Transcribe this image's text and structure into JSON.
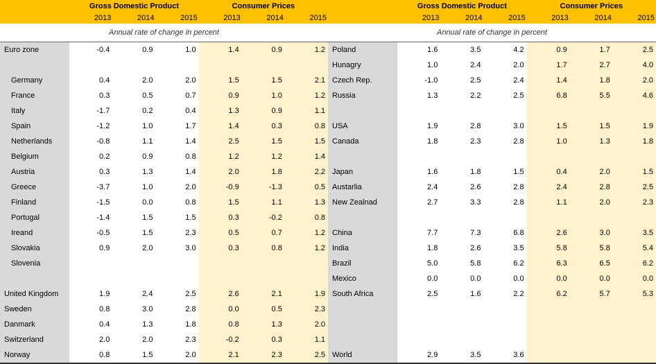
{
  "headers": {
    "gdp": "Gross Domestic Product",
    "cpi": "Consumer Prices",
    "years": [
      "2013",
      "2014",
      "2015"
    ],
    "sub": "Annual rate of change in percent"
  },
  "colors": {
    "header_bg": "#ffc000",
    "country_bg": "#d9d9d9",
    "cpi_bg": "#fff2cc",
    "gdp_bg": "#ffffff",
    "text": "#000000"
  },
  "left": [
    {
      "name": "Euro zone",
      "indent": false,
      "gdp": [
        "-0.4",
        "0.9",
        "1.0"
      ],
      "cpi": [
        "1.4",
        "0.9",
        "1.2"
      ]
    },
    {
      "spacer": true
    },
    {
      "name": "Germany",
      "indent": true,
      "gdp": [
        "0.4",
        "2.0",
        "2.0"
      ],
      "cpi": [
        "1.5",
        "1.5",
        "2.1"
      ]
    },
    {
      "name": "France",
      "indent": true,
      "gdp": [
        "0.3",
        "0.5",
        "0.7"
      ],
      "cpi": [
        "0.9",
        "1.0",
        "1.2"
      ]
    },
    {
      "name": "Italy",
      "indent": true,
      "gdp": [
        "-1.7",
        "0.2",
        "0.4"
      ],
      "cpi": [
        "1.3",
        "0.9",
        "1.1"
      ]
    },
    {
      "name": "Spain",
      "indent": true,
      "gdp": [
        "-1.2",
        "1.0",
        "1.7"
      ],
      "cpi": [
        "1.4",
        "0.3",
        "0.8"
      ]
    },
    {
      "name": "Netherlands",
      "indent": true,
      "gdp": [
        "-0.8",
        "1.1",
        "1.4"
      ],
      "cpi": [
        "2.5",
        "1.5",
        "1.5"
      ]
    },
    {
      "name": "Belgium",
      "indent": true,
      "gdp": [
        "0.2",
        "0.9",
        "0.8"
      ],
      "cpi": [
        "1.2",
        "1.2",
        "1.4"
      ]
    },
    {
      "name": "Austria",
      "indent": true,
      "gdp": [
        "0.3",
        "1.3",
        "1.4"
      ],
      "cpi": [
        "2.0",
        "1.8",
        "2.2"
      ]
    },
    {
      "name": "Greece",
      "indent": true,
      "gdp": [
        "-3.7",
        "1.0",
        "2.0"
      ],
      "cpi": [
        "-0.9",
        "-1.3",
        "0.5"
      ]
    },
    {
      "name": "Finland",
      "indent": true,
      "gdp": [
        "-1.5",
        "0.0",
        "0.8"
      ],
      "cpi": [
        "1.5",
        "1.1",
        "1.3"
      ]
    },
    {
      "name": "Portugal",
      "indent": true,
      "gdp": [
        "-1.4",
        "1.5",
        "1.5"
      ],
      "cpi": [
        "0.3",
        "-0.2",
        "0.8"
      ]
    },
    {
      "name": "Ireand",
      "indent": true,
      "gdp": [
        "-0.5",
        "1.5",
        "2.3"
      ],
      "cpi": [
        "0.5",
        "0.7",
        "1.2"
      ]
    },
    {
      "name": "Slovakia",
      "indent": true,
      "gdp": [
        "0.9",
        "2.0",
        "3.0"
      ],
      "cpi": [
        "0.3",
        "0.8",
        "1.2"
      ]
    },
    {
      "name": "Slovenia",
      "indent": true,
      "gdp": [
        "",
        "",
        ""
      ],
      "cpi": [
        "",
        "",
        ""
      ]
    },
    {
      "spacer": true
    },
    {
      "name": "United Kingdom",
      "indent": false,
      "gdp": [
        "1.9",
        "2.4",
        "2.5"
      ],
      "cpi": [
        "2.6",
        "2.1",
        "1.9"
      ]
    },
    {
      "name": "Sweden",
      "indent": false,
      "gdp": [
        "0.8",
        "3.0",
        "2.8"
      ],
      "cpi": [
        "0.0",
        "0.5",
        "2.3"
      ]
    },
    {
      "name": "Danmark",
      "indent": false,
      "gdp": [
        "0.4",
        "1.3",
        "1.8"
      ],
      "cpi": [
        "0.8",
        "1.3",
        "2.0"
      ]
    },
    {
      "name": "Switzerland",
      "indent": false,
      "gdp": [
        "2.0",
        "2.0",
        "2.3"
      ],
      "cpi": [
        "-0.2",
        "0.3",
        "1.1"
      ]
    },
    {
      "name": "Norway",
      "indent": false,
      "gdp": [
        "0.8",
        "1.5",
        "2.0"
      ],
      "cpi": [
        "2.1",
        "2.3",
        "2.5"
      ]
    }
  ],
  "right": [
    {
      "name": "Poland",
      "indent": false,
      "gdp": [
        "1.6",
        "3.5",
        "4.2"
      ],
      "cpi": [
        "0.9",
        "1.7",
        "2.5"
      ]
    },
    {
      "name": "Hunagry",
      "indent": false,
      "gdp": [
        "1.0",
        "2.4",
        "2.0"
      ],
      "cpi": [
        "1.7",
        "2.7",
        "4.0"
      ]
    },
    {
      "name": "Czech Rep.",
      "indent": false,
      "gdp": [
        "-1.0",
        "2.5",
        "2.4"
      ],
      "cpi": [
        "1.4",
        "1.8",
        "2.0"
      ]
    },
    {
      "name": "Russia",
      "indent": false,
      "gdp": [
        "1.3",
        "2.2",
        "2.5"
      ],
      "cpi": [
        "6.8",
        "5.5",
        "4.6"
      ]
    },
    {
      "spacer": true
    },
    {
      "name": "USA",
      "indent": false,
      "gdp": [
        "1.9",
        "2.8",
        "3.0"
      ],
      "cpi": [
        "1.5",
        "1.5",
        "1.9"
      ]
    },
    {
      "name": "Canada",
      "indent": false,
      "gdp": [
        "1.8",
        "2.3",
        "2.8"
      ],
      "cpi": [
        "1.0",
        "1.3",
        "1.8"
      ]
    },
    {
      "spacer": true
    },
    {
      "name": "Japan",
      "indent": false,
      "gdp": [
        "1.6",
        "1.8",
        "1.5"
      ],
      "cpi": [
        "0.4",
        "2.0",
        "1.5"
      ]
    },
    {
      "name": "Austarlia",
      "indent": false,
      "gdp": [
        "2.4",
        "2.6",
        "2.8"
      ],
      "cpi": [
        "2.4",
        "2.8",
        "2.5"
      ]
    },
    {
      "name": "New Zealnad",
      "indent": false,
      "gdp": [
        "2.7",
        "3.3",
        "2.8"
      ],
      "cpi": [
        "1.1",
        "2.0",
        "2.3"
      ]
    },
    {
      "spacer": true
    },
    {
      "name": "China",
      "indent": false,
      "gdp": [
        "7.7",
        "7.3",
        "6.8"
      ],
      "cpi": [
        "2.6",
        "3.0",
        "3.5"
      ]
    },
    {
      "name": "India",
      "indent": false,
      "gdp": [
        "1.8",
        "2.6",
        "3.5"
      ],
      "cpi": [
        "5.8",
        "5.8",
        "5.4"
      ]
    },
    {
      "name": "Brazil",
      "indent": false,
      "gdp": [
        "5.0",
        "5.8",
        "6.2"
      ],
      "cpi": [
        "6.3",
        "6.5",
        "6.2"
      ]
    },
    {
      "name": "Mexico",
      "indent": false,
      "gdp": [
        "0.0",
        "0.0",
        "0.0"
      ],
      "cpi": [
        "0.0",
        "0.0",
        "0.0"
      ]
    },
    {
      "name": "South Africa",
      "indent": false,
      "gdp": [
        "2.5",
        "1.6",
        "2.2"
      ],
      "cpi": [
        "6.2",
        "5.7",
        "5.3"
      ]
    },
    {
      "spacer": true
    },
    {
      "spacer": true
    },
    {
      "spacer": true
    },
    {
      "name": "World",
      "indent": false,
      "gdp": [
        "2.9",
        "3.5",
        "3.6"
      ],
      "cpi": [
        "",
        "",
        ""
      ]
    }
  ]
}
